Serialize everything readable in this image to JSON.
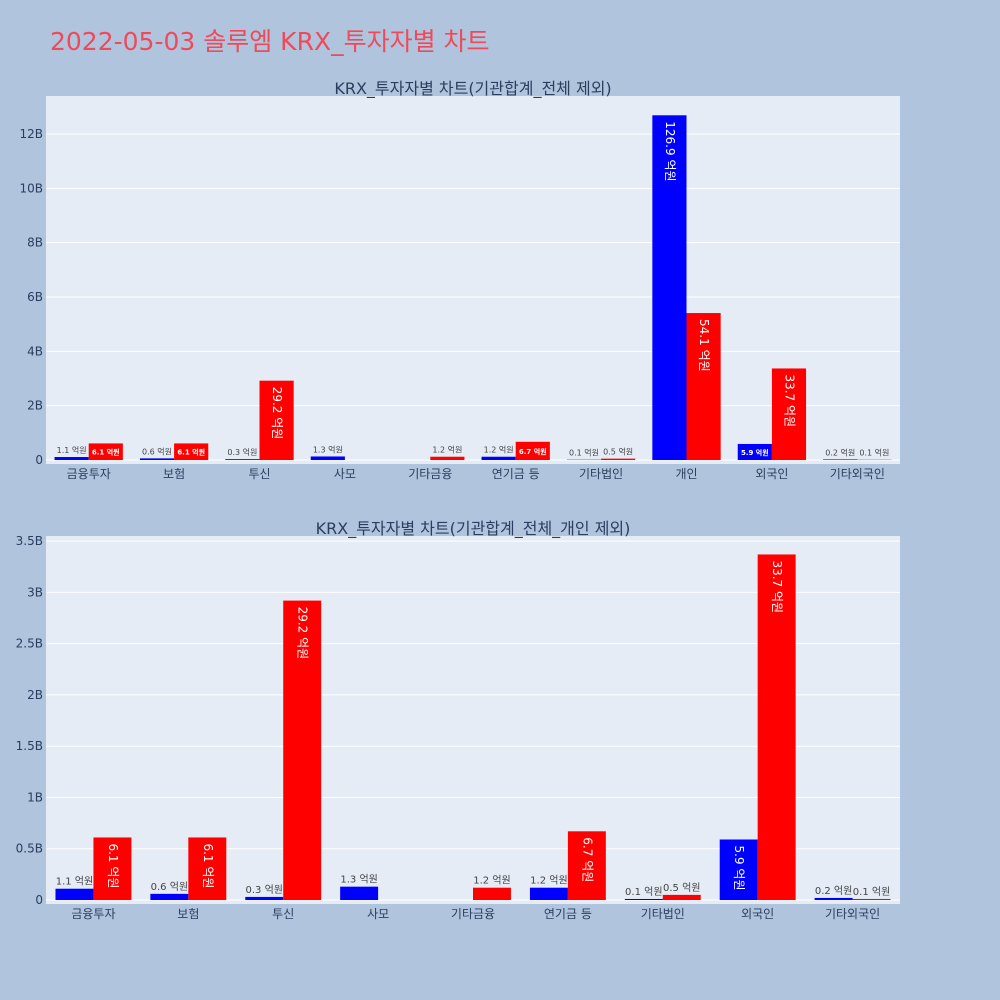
{
  "page": {
    "title": "2022-05-03 솔루엠 KRX_투자자별 차트"
  },
  "colors": {
    "buy": "#0000ff",
    "sell": "#ff0000",
    "plot_bg": "#e5ecf6",
    "page_bg": "#b0c4de"
  },
  "chart_data": [
    {
      "type": "bar",
      "title": "KRX_투자자별 차트(기관합계_전체 제외)",
      "categories": [
        "금융투자",
        "보험",
        "투신",
        "사모",
        "기타금융",
        "연기금 등",
        "기타법인",
        "개인",
        "외국인",
        "기타외국인"
      ],
      "series": [
        {
          "color": "#0000ff",
          "values": [
            110000000,
            60000000,
            30000000,
            130000000,
            0,
            120000000,
            10000000,
            12690000000,
            590000000,
            20000000
          ],
          "labels": [
            "1.1 억원",
            "0.6 억원",
            "0.3 억원",
            "1.3 억원",
            "",
            "1.2 억원",
            "0.1 억원",
            "126.9 억원",
            "5.9 억원",
            "0.2 억원"
          ]
        },
        {
          "color": "#ff0000",
          "values": [
            610000000,
            610000000,
            2920000000,
            0,
            120000000,
            670000000,
            50000000,
            5410000000,
            3370000000,
            10000000
          ],
          "labels": [
            "6.1 억원",
            "6.1 억원",
            "29.2 억원",
            "",
            "1.2 억원",
            "6.7 억원",
            "0.5 억원",
            "54.1 억원",
            "33.7 억원",
            "0.1 억원"
          ]
        }
      ],
      "ylim": [
        0,
        13400000000
      ],
      "yticks": [
        0,
        2000000000,
        4000000000,
        6000000000,
        8000000000,
        10000000000,
        12000000000
      ],
      "ytick_labels": [
        "0",
        "2B",
        "4B",
        "6B",
        "8B",
        "10B",
        "12B"
      ],
      "grid": true
    },
    {
      "type": "bar",
      "title": "KRX_투자자별 차트(기관합계_전체_개인 제외)",
      "categories": [
        "금융투자",
        "보험",
        "투신",
        "사모",
        "기타금융",
        "연기금 등",
        "기타법인",
        "외국인",
        "기타외국인"
      ],
      "series": [
        {
          "color": "#0000ff",
          "values": [
            110000000,
            60000000,
            30000000,
            130000000,
            0,
            120000000,
            10000000,
            590000000,
            20000000
          ],
          "labels": [
            "1.1 억원",
            "0.6 억원",
            "0.3 억원",
            "1.3 억원",
            "",
            "1.2 억원",
            "0.1 억원",
            "5.9 억원",
            "0.2 억원"
          ]
        },
        {
          "color": "#ff0000",
          "values": [
            610000000,
            610000000,
            2920000000,
            0,
            120000000,
            670000000,
            50000000,
            3370000000,
            10000000
          ],
          "labels": [
            "6.1 억원",
            "6.1 억원",
            "29.2 억원",
            "",
            "1.2 억원",
            "6.7 억원",
            "0.5 억원",
            "33.7 억원",
            "0.1 억원"
          ]
        }
      ],
      "ylim": [
        0,
        3550000000
      ],
      "yticks": [
        0,
        500000000,
        1000000000,
        1500000000,
        2000000000,
        2500000000,
        3000000000,
        3500000000
      ],
      "ytick_labels": [
        "0",
        "0.5B",
        "1B",
        "1.5B",
        "2B",
        "2.5B",
        "3B",
        "3.5B"
      ],
      "grid": true
    }
  ]
}
